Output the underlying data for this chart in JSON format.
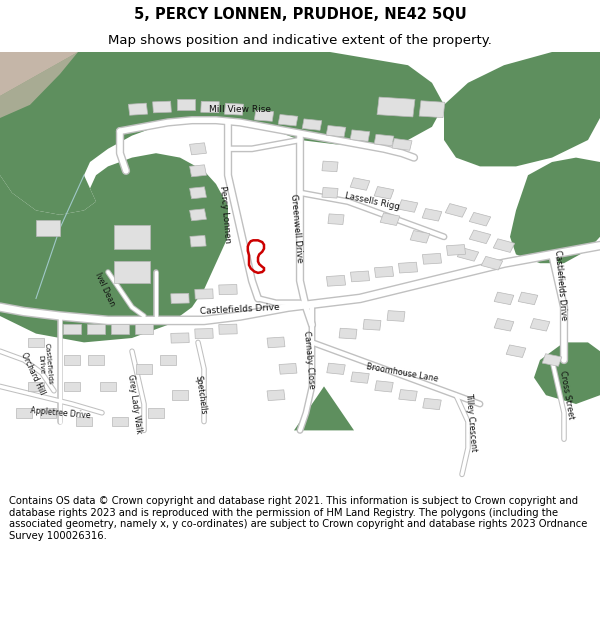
{
  "title_line1": "5, PERCY LONNEN, PRUDHOE, NE42 5QU",
  "title_line2": "Map shows position and indicative extent of the property.",
  "copyright_text": "Contains OS data © Crown copyright and database right 2021. This information is subject to Crown copyright and database rights 2023 and is reproduced with the permission of HM Land Registry. The polygons (including the associated geometry, namely x, y co-ordinates) are subject to Crown copyright and database rights 2023 Ordnance Survey 100026316.",
  "bg_color": "#ffffff",
  "map_bg": "#f0f0f0",
  "green_color": "#5e8f5e",
  "green_color2": "#6a9c6a",
  "road_color": "#ffffff",
  "road_edge": "#c8c8c8",
  "building_color": "#e0e0e0",
  "building_edge": "#b8b8b8",
  "red_outline": "#cc0000",
  "pink_color": "#f2c8c8",
  "title_fontsize": 10.5,
  "subtitle_fontsize": 9.5,
  "copyright_fontsize": 7.2
}
